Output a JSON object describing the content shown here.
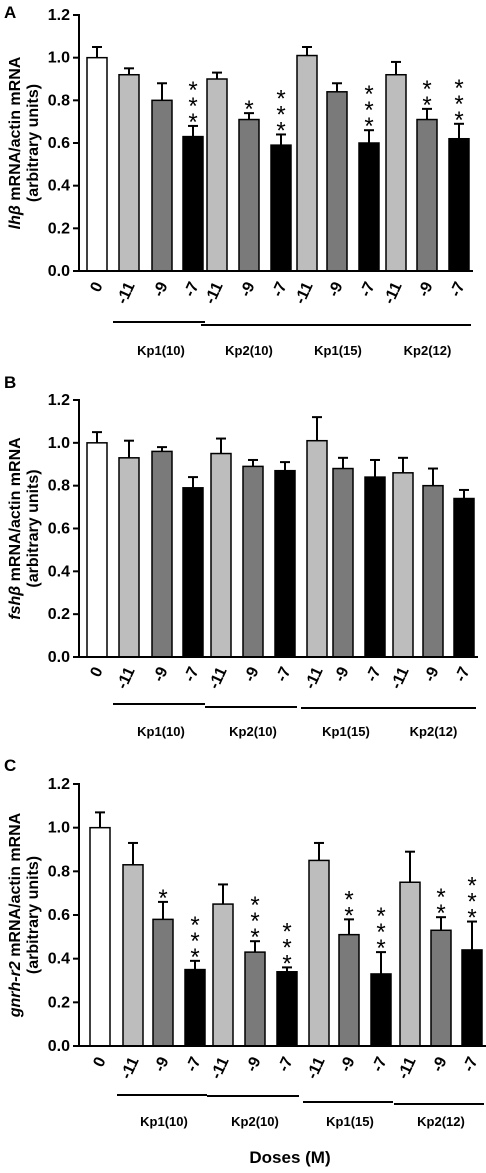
{
  "colors": {
    "control": "#ffffff",
    "dose_-11": "#bdbdbd",
    "dose_-9": "#7a7a7a",
    "dose_-7": "#000000"
  },
  "x_title": "Doses (M)",
  "chart_data": [
    {
      "panel": "A",
      "type": "bar",
      "ylabel_italic": "lhβ",
      "ylabel_rest": " mRNA/actin mRNA",
      "ylabel_line2": "(arbitrary units)",
      "ylim": [
        0,
        1.2
      ],
      "yticks": [
        "0.0",
        "0.2",
        "0.4",
        "0.6",
        "0.8",
        "1.0",
        "1.2"
      ],
      "categories": [
        "0",
        "-11",
        "-9",
        "-7",
        "-11",
        "-9",
        "-7",
        "-11",
        "-9",
        "-7",
        "-11",
        "-9",
        "-7"
      ],
      "values": [
        1.0,
        0.92,
        0.8,
        0.63,
        0.9,
        0.71,
        0.59,
        1.01,
        0.84,
        0.6,
        0.92,
        0.71,
        0.62
      ],
      "errors": [
        0.05,
        0.03,
        0.08,
        0.05,
        0.03,
        0.03,
        0.05,
        0.04,
        0.04,
        0.06,
        0.06,
        0.05,
        0.07
      ],
      "significance": [
        "",
        "",
        "",
        "***",
        "",
        "*",
        "***",
        "",
        "",
        "***",
        "",
        "**",
        "***"
      ],
      "groups": [
        "Kp1(10)",
        "Kp2(10)",
        "Kp1(15)",
        "Kp2(12)"
      ]
    },
    {
      "panel": "B",
      "type": "bar",
      "ylabel_italic": "fshβ",
      "ylabel_rest": " mRNA/actin mRNA",
      "ylabel_line2": "(arbitrary units)",
      "ylim": [
        0,
        1.2
      ],
      "yticks": [
        "0.0",
        "0.2",
        "0.4",
        "0.6",
        "0.8",
        "1.0",
        "1.2"
      ],
      "categories": [
        "0",
        "-11",
        "-9",
        "-7",
        "-11",
        "-9",
        "-7",
        "-11",
        "-9",
        "-7",
        "-11",
        "-9",
        "-7"
      ],
      "values": [
        1.0,
        0.93,
        0.96,
        0.79,
        0.95,
        0.89,
        0.87,
        1.01,
        0.88,
        0.84,
        0.86,
        0.8,
        0.74
      ],
      "errors": [
        0.05,
        0.08,
        0.02,
        0.05,
        0.07,
        0.03,
        0.04,
        0.11,
        0.05,
        0.08,
        0.07,
        0.08,
        0.04
      ],
      "significance": [
        "",
        "",
        "",
        "",
        "",
        "",
        "",
        "",
        "",
        "",
        "",
        "",
        ""
      ],
      "groups": [
        "Kp1(10)",
        "Kp2(10)",
        "Kp1(15)",
        "Kp2(12)"
      ]
    },
    {
      "panel": "C",
      "type": "bar",
      "ylabel_italic": "gnrh-r2",
      "ylabel_rest": " mRNA/actin mRNA",
      "ylabel_line2": "(arbitrary units)",
      "ylim": [
        0,
        1.2
      ],
      "yticks": [
        "0.0",
        "0.2",
        "0.4",
        "0.6",
        "0.8",
        "1.0",
        "1.2"
      ],
      "categories": [
        "0",
        "-11",
        "-9",
        "-7",
        "-11",
        "-9",
        "-7",
        "-11",
        "-9",
        "-7",
        "-11",
        "-9",
        "-7"
      ],
      "values": [
        1.0,
        0.83,
        0.58,
        0.35,
        0.65,
        0.43,
        0.34,
        0.85,
        0.51,
        0.33,
        0.75,
        0.53,
        0.44
      ],
      "errors": [
        0.07,
        0.1,
        0.08,
        0.04,
        0.09,
        0.05,
        0.02,
        0.08,
        0.07,
        0.1,
        0.14,
        0.06,
        0.13
      ],
      "significance": [
        "",
        "",
        "*",
        "***",
        "",
        "***",
        "***",
        "",
        "**",
        "***",
        "",
        "**",
        "***"
      ],
      "groups": [
        "Kp1(10)",
        "Kp2(10)",
        "Kp1(15)",
        "Kp2(12)"
      ]
    }
  ]
}
